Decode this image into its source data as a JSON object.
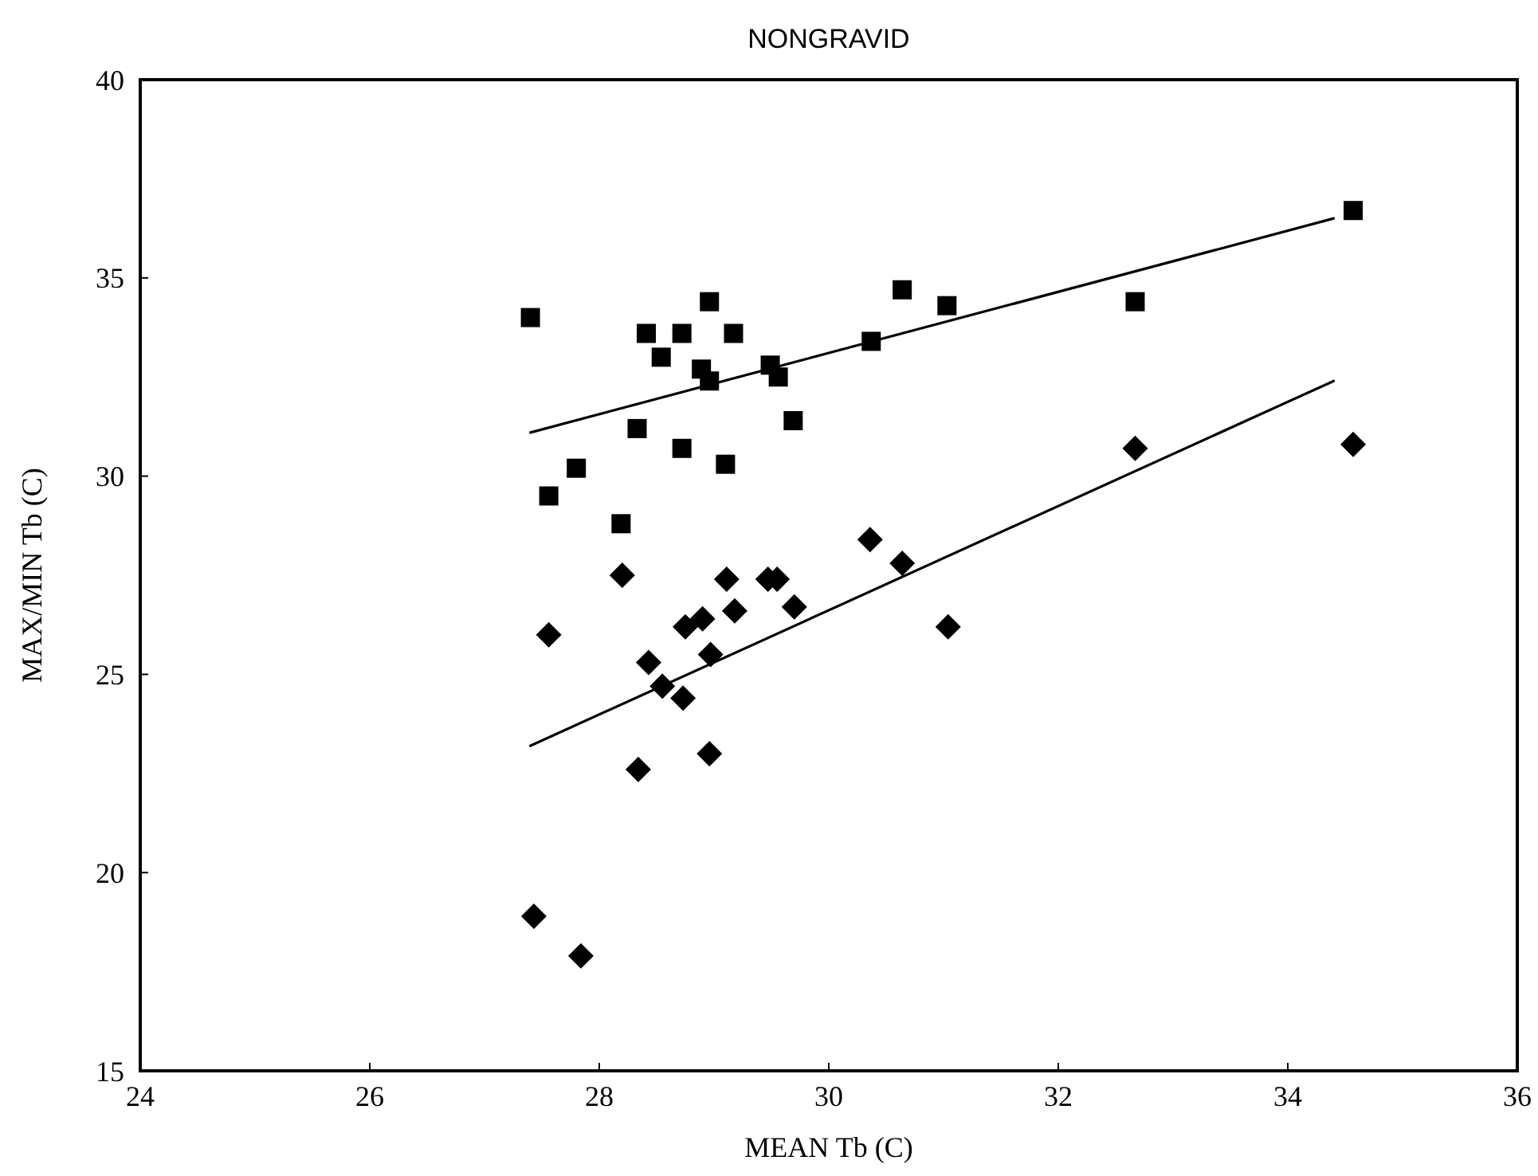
{
  "chart_data": {
    "type": "scatter",
    "title": "NONGRAVID",
    "xlabel": "MEAN Tb (C)",
    "ylabel": "MAX/MIN Tb (C)",
    "xlim": [
      24,
      36
    ],
    "xticks": [
      24,
      26,
      28,
      30,
      32,
      34,
      36
    ],
    "ylim": [
      15,
      40
    ],
    "yticks": [
      15,
      20,
      25,
      30,
      35,
      40
    ],
    "grid": false,
    "series": [
      {
        "marker": "square",
        "color": "#000000",
        "x": [
          27.4,
          28.96,
          28.41,
          28.72,
          29.17,
          28.54,
          28.89,
          28.96,
          29.49,
          29.56,
          30.37,
          30.64,
          31.03,
          28.33,
          28.72,
          29.1,
          29.69,
          27.8,
          27.56,
          28.19,
          32.67,
          34.57
        ],
        "values": [
          34.0,
          34.4,
          33.6,
          33.6,
          33.6,
          33.0,
          32.7,
          32.4,
          32.8,
          32.5,
          33.4,
          34.7,
          34.3,
          31.2,
          30.7,
          30.3,
          31.4,
          30.2,
          29.5,
          28.8,
          34.4,
          36.7
        ]
      },
      {
        "marker": "diamond",
        "color": "#000000",
        "x": [
          28.2,
          27.56,
          29.11,
          29.47,
          29.55,
          29.18,
          29.7,
          28.75,
          28.9,
          28.97,
          28.43,
          28.55,
          28.73,
          28.96,
          28.34,
          31.04,
          30.64,
          30.36,
          32.67,
          34.57,
          27.43,
          27.84
        ],
        "values": [
          27.5,
          26.0,
          27.4,
          27.4,
          27.4,
          26.6,
          26.7,
          26.2,
          26.4,
          25.5,
          25.3,
          24.7,
          24.4,
          23.0,
          22.6,
          26.2,
          27.8,
          28.4,
          30.7,
          30.8,
          18.9,
          17.9
        ]
      },
      {
        "type": "line",
        "marker": "none",
        "line_style": "solid",
        "color": "#000000",
        "x": [
          27.4,
          34.4
        ],
        "values": [
          31.1,
          36.5
        ]
      },
      {
        "type": "line",
        "marker": "none",
        "line_style": "solid",
        "color": "#000000",
        "x": [
          27.4,
          34.4
        ],
        "values": [
          23.2,
          32.4
        ]
      }
    ]
  }
}
